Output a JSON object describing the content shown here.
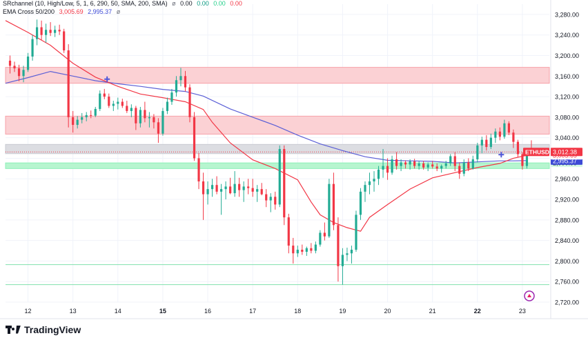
{
  "legend": {
    "indicator1_name": "SRchannel (10, High/Low, 5, 1, 6, 290, 50, SMA, 200, SMA)",
    "indicator1_icon": "ø",
    "indicator1_values": [
      "0.00",
      "0.00",
      "0.00",
      "0.00"
    ],
    "indicator2_name": "EMA Cross 50/200",
    "indicator2_values": [
      "3,005.69",
      "2,995.37"
    ],
    "indicator2_icon": "ø"
  },
  "colors": {
    "up": "#22ab94",
    "down": "#f23645",
    "ema50": "#f23645",
    "ema200": "#5b5fd6",
    "resistance": "#f7a1a8",
    "support": "#8cf0b8",
    "neutral": "#c9cbd1",
    "grid": "#f0f3fa"
  },
  "price_labels": {
    "symbol": "ETHUSD",
    "last": "3,012.38",
    "ema50": "3,005.69",
    "ema200": "2,995.37",
    "support": "2,990.99"
  },
  "brand": {
    "name": "TradingView",
    "icon": "tradingview-logo-icon"
  },
  "chart_data": {
    "type": "candlestick",
    "symbol": "ETHUSD",
    "ylim": [
      2720,
      3300
    ],
    "y_ticks": [
      "3,280.00",
      "3,240.00",
      "3,200.00",
      "3,160.00",
      "3,120.00",
      "3,080.00",
      "3,040.00",
      "3,000.00",
      "2,960.00",
      "2,920.00",
      "2,880.00",
      "2,840.00",
      "2,800.00",
      "2,760.00",
      "2,720.00"
    ],
    "x_ticks": [
      "12",
      "13",
      "14",
      "15",
      "16",
      "17",
      "18",
      "19",
      "20",
      "21",
      "22",
      "23"
    ],
    "bold_x_ticks": [
      "15",
      "22"
    ],
    "x_tick_positions": [
      0.5,
      1.5,
      2.5,
      3.5,
      4.5,
      5.5,
      6.5,
      7.5,
      8.5,
      9.5,
      10.5,
      11.5
    ],
    "x_range": [
      0,
      12.1
    ],
    "zones": [
      {
        "type": "resistance",
        "from": 3146,
        "to": 3177
      },
      {
        "type": "resistance",
        "from": 3047,
        "to": 3082
      },
      {
        "type": "neutral",
        "from": 3009,
        "to": 3027
      },
      {
        "type": "support",
        "from": 2980,
        "to": 2990.99
      }
    ],
    "lines": [
      2793,
      2754
    ],
    "last_price_line": 3012.38,
    "ema_cross_markers": [
      {
        "x": 2.26,
        "y": 3154
      },
      {
        "x": 11.03,
        "y": 3007
      }
    ],
    "ema50": [
      [
        0,
        3268
      ],
      [
        0.5,
        3245
      ],
      [
        1,
        3220
      ],
      [
        1.5,
        3185
      ],
      [
        2,
        3158
      ],
      [
        2.5,
        3140
      ],
      [
        3,
        3125
      ],
      [
        3.5,
        3118
      ],
      [
        4,
        3110
      ],
      [
        4.4,
        3095
      ],
      [
        4.6,
        3070
      ],
      [
        5,
        3030
      ],
      [
        5.5,
        2997
      ],
      [
        6,
        2980
      ],
      [
        6.5,
        2958
      ],
      [
        6.8,
        2915
      ],
      [
        7,
        2890
      ],
      [
        7.3,
        2875
      ],
      [
        7.6,
        2865
      ],
      [
        7.9,
        2858
      ],
      [
        8.1,
        2885
      ],
      [
        8.5,
        2910
      ],
      [
        9,
        2940
      ],
      [
        9.5,
        2962
      ],
      [
        10,
        2972
      ],
      [
        10.5,
        2982
      ],
      [
        11,
        2990
      ],
      [
        11.3,
        3000
      ],
      [
        11.6,
        3005.69
      ]
    ],
    "ema200": [
      [
        0,
        3146
      ],
      [
        0.5,
        3157
      ],
      [
        1,
        3169
      ],
      [
        1.5,
        3160
      ],
      [
        2,
        3151
      ],
      [
        2.5,
        3145
      ],
      [
        3,
        3140
      ],
      [
        3.5,
        3134
      ],
      [
        4,
        3130
      ],
      [
        4.4,
        3121
      ],
      [
        5,
        3096
      ],
      [
        5.5,
        3080
      ],
      [
        6,
        3064
      ],
      [
        6.5,
        3045
      ],
      [
        7,
        3028
      ],
      [
        7.5,
        3015
      ],
      [
        8,
        3003
      ],
      [
        8.5,
        2996
      ],
      [
        9,
        2995
      ],
      [
        9.5,
        2994
      ],
      [
        10,
        2991
      ],
      [
        10.5,
        2993
      ],
      [
        11,
        2995
      ],
      [
        11.3,
        2995
      ],
      [
        11.6,
        2995.37
      ]
    ],
    "candles": [
      [
        0.1,
        3190,
        3200,
        3165,
        3180
      ],
      [
        0.2,
        3180,
        3188,
        3168,
        3175
      ],
      [
        0.3,
        3175,
        3182,
        3150,
        3160
      ],
      [
        0.4,
        3160,
        3180,
        3148,
        3172
      ],
      [
        0.5,
        3172,
        3205,
        3168,
        3198
      ],
      [
        0.6,
        3198,
        3240,
        3190,
        3232
      ],
      [
        0.7,
        3232,
        3270,
        3220,
        3255
      ],
      [
        0.8,
        3255,
        3268,
        3230,
        3240
      ],
      [
        0.9,
        3240,
        3262,
        3225,
        3250
      ],
      [
        1.0,
        3250,
        3265,
        3238,
        3244
      ],
      [
        1.1,
        3244,
        3258,
        3236,
        3250
      ],
      [
        1.2,
        3250,
        3260,
        3240,
        3247
      ],
      [
        1.3,
        3247,
        3252,
        3205,
        3210
      ],
      [
        1.4,
        3210,
        3222,
        3060,
        3080
      ],
      [
        1.5,
        3080,
        3092,
        3050,
        3065
      ],
      [
        1.6,
        3065,
        3082,
        3058,
        3075
      ],
      [
        1.7,
        3075,
        3088,
        3068,
        3080
      ],
      [
        1.8,
        3080,
        3090,
        3072,
        3084
      ],
      [
        1.9,
        3084,
        3093,
        3078,
        3083
      ],
      [
        2.0,
        3083,
        3100,
        3080,
        3096
      ],
      [
        2.1,
        3096,
        3132,
        3092,
        3126
      ],
      [
        2.2,
        3126,
        3135,
        3115,
        3120
      ],
      [
        2.3,
        3120,
        3126,
        3098,
        3102
      ],
      [
        2.4,
        3102,
        3112,
        3092,
        3106
      ],
      [
        2.5,
        3106,
        3118,
        3095,
        3110
      ],
      [
        2.6,
        3110,
        3116,
        3098,
        3102
      ],
      [
        2.7,
        3102,
        3112,
        3088,
        3092
      ],
      [
        2.8,
        3092,
        3105,
        3080,
        3098
      ],
      [
        2.9,
        3098,
        3102,
        3055,
        3068
      ],
      [
        3.0,
        3068,
        3100,
        3060,
        3094
      ],
      [
        3.1,
        3094,
        3110,
        3070,
        3078
      ],
      [
        3.2,
        3078,
        3090,
        3060,
        3080
      ],
      [
        3.3,
        3080,
        3086,
        3058,
        3070
      ],
      [
        3.4,
        3070,
        3078,
        3030,
        3048
      ],
      [
        3.5,
        3048,
        3098,
        3044,
        3092
      ],
      [
        3.6,
        3092,
        3118,
        3086,
        3110
      ],
      [
        3.7,
        3110,
        3135,
        3104,
        3128
      ],
      [
        3.8,
        3128,
        3160,
        3120,
        3152
      ],
      [
        3.9,
        3152,
        3176,
        3140,
        3160
      ],
      [
        4.0,
        3160,
        3170,
        3130,
        3138
      ],
      [
        4.1,
        3138,
        3144,
        3070,
        3080
      ],
      [
        4.2,
        3080,
        3090,
        2995,
        3000
      ],
      [
        4.3,
        3000,
        3010,
        2940,
        2955
      ],
      [
        4.4,
        2955,
        2972,
        2880,
        2930
      ],
      [
        4.5,
        2930,
        2955,
        2910,
        2940
      ],
      [
        4.6,
        2940,
        2960,
        2925,
        2948
      ],
      [
        4.7,
        2948,
        2965,
        2930,
        2935
      ],
      [
        4.8,
        2935,
        2950,
        2890,
        2940
      ],
      [
        4.9,
        2940,
        2955,
        2920,
        2945
      ],
      [
        5.0,
        2945,
        2962,
        2930,
        2932
      ],
      [
        5.1,
        2932,
        2975,
        2925,
        2950
      ],
      [
        5.2,
        2950,
        2962,
        2925,
        2938
      ],
      [
        5.3,
        2938,
        2955,
        2915,
        2945
      ],
      [
        5.4,
        2945,
        2960,
        2930,
        2942
      ],
      [
        5.5,
        2942,
        2960,
        2925,
        2935
      ],
      [
        5.6,
        2935,
        2948,
        2915,
        2940
      ],
      [
        5.7,
        2940,
        2952,
        2928,
        2930
      ],
      [
        5.8,
        2930,
        2940,
        2905,
        2918
      ],
      [
        5.9,
        2918,
        2932,
        2895,
        2925
      ],
      [
        6.0,
        2925,
        2935,
        2900,
        2910
      ],
      [
        6.1,
        2910,
        3025,
        2905,
        3018
      ],
      [
        6.2,
        3018,
        3025,
        2870,
        2885
      ],
      [
        6.3,
        2885,
        2892,
        2815,
        2830
      ],
      [
        6.4,
        2830,
        2845,
        2795,
        2815
      ],
      [
        6.5,
        2815,
        2830,
        2808,
        2822
      ],
      [
        6.6,
        2822,
        2832,
        2812,
        2818
      ],
      [
        6.7,
        2818,
        2828,
        2810,
        2825
      ],
      [
        6.8,
        2825,
        2835,
        2815,
        2820
      ],
      [
        6.9,
        2820,
        2838,
        2815,
        2832
      ],
      [
        7.0,
        2832,
        2860,
        2828,
        2855
      ],
      [
        7.1,
        2855,
        2875,
        2840,
        2848
      ],
      [
        7.2,
        2848,
        2960,
        2845,
        2950
      ],
      [
        7.3,
        2950,
        2972,
        2860,
        2870
      ],
      [
        7.4,
        2870,
        2885,
        2760,
        2790
      ],
      [
        7.5,
        2790,
        2825,
        2754,
        2812
      ],
      [
        7.6,
        2812,
        2826,
        2800,
        2815
      ],
      [
        7.7,
        2815,
        2830,
        2795,
        2822
      ],
      [
        7.8,
        2822,
        2898,
        2818,
        2890
      ],
      [
        7.9,
        2890,
        2942,
        2880,
        2935
      ],
      [
        8.0,
        2935,
        2955,
        2915,
        2948
      ],
      [
        8.1,
        2948,
        2972,
        2930,
        2955
      ],
      [
        8.2,
        2955,
        2975,
        2935,
        2960
      ],
      [
        8.3,
        2960,
        2985,
        2948,
        2978
      ],
      [
        8.4,
        2978,
        3018,
        2962,
        2985
      ],
      [
        8.5,
        2985,
        3000,
        2958,
        2972
      ],
      [
        8.6,
        2972,
        3005,
        2968,
        2998
      ],
      [
        8.7,
        2998,
        3012,
        2978,
        2985
      ],
      [
        8.8,
        2985,
        2998,
        2975,
        2992
      ],
      [
        8.9,
        2992,
        2996,
        2980,
        2988
      ],
      [
        9.0,
        2988,
        2998,
        2978,
        2994
      ],
      [
        9.1,
        2994,
        2999,
        2980,
        2985
      ],
      [
        9.2,
        2985,
        2995,
        2978,
        2990
      ],
      [
        9.3,
        2990,
        2995,
        2978,
        2982
      ],
      [
        9.4,
        2982,
        2992,
        2975,
        2988
      ],
      [
        9.5,
        2988,
        2995,
        2980,
        2984
      ],
      [
        9.6,
        2984,
        2990,
        2975,
        2980
      ],
      [
        9.7,
        2980,
        2988,
        2972,
        2985
      ],
      [
        9.8,
        2985,
        2995,
        2980,
        2990
      ],
      [
        9.9,
        2990,
        3008,
        2985,
        3004
      ],
      [
        10.0,
        3004,
        3012,
        2975,
        2985
      ],
      [
        10.1,
        2985,
        2992,
        2960,
        2970
      ],
      [
        10.2,
        2970,
        2998,
        2965,
        2992
      ],
      [
        10.3,
        2992,
        3000,
        2975,
        2980
      ],
      [
        10.4,
        2980,
        3005,
        2978,
        2998
      ],
      [
        10.5,
        2998,
        3030,
        2992,
        3025
      ],
      [
        10.6,
        3025,
        3042,
        3010,
        3036
      ],
      [
        10.7,
        3036,
        3045,
        3015,
        3022
      ],
      [
        10.8,
        3022,
        3048,
        3018,
        3040
      ],
      [
        10.9,
        3040,
        3058,
        3030,
        3052
      ],
      [
        11.0,
        3052,
        3060,
        3035,
        3042
      ],
      [
        11.1,
        3042,
        3075,
        3038,
        3068
      ],
      [
        11.2,
        3068,
        3072,
        3045,
        3050
      ],
      [
        11.3,
        3050,
        3056,
        3020,
        3032
      ],
      [
        11.4,
        3032,
        3036,
        3002,
        3008
      ],
      [
        11.5,
        3008,
        3012,
        2978,
        2985
      ],
      [
        11.6,
        2985,
        3020,
        2980,
        3014
      ],
      [
        11.7,
        3014,
        3035,
        3005,
        3012.38
      ]
    ]
  }
}
